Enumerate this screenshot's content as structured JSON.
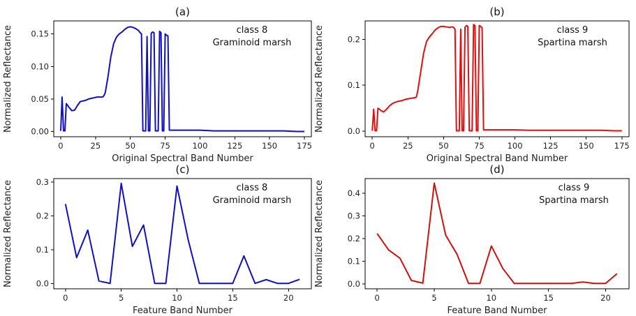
{
  "chart_data": [
    {
      "type": "line",
      "panel": "(a)",
      "xlabel": "Original Spectral Band Number",
      "ylabel": "Normalized Reflectance",
      "xlim": [
        -5,
        180
      ],
      "ylim": [
        -0.008,
        0.17
      ],
      "xticks": [
        0,
        25,
        50,
        75,
        100,
        125,
        150,
        175
      ],
      "yticks": [
        0.0,
        0.05,
        0.1,
        0.15
      ],
      "ytick_labels": [
        "0.00",
        "0.05",
        "0.10",
        "0.15"
      ],
      "annotation": [
        "class 8",
        "Graminoid marsh"
      ],
      "color": "#1111bb",
      "series": [
        {
          "x": [
            0,
            1,
            2,
            3,
            4,
            5,
            6,
            8,
            10,
            12,
            14,
            16,
            18,
            20,
            22,
            24,
            26,
            28,
            30,
            31,
            32,
            34,
            36,
            38,
            40,
            42,
            44,
            46,
            48,
            50,
            52,
            54,
            56,
            57,
            58,
            59,
            60,
            61,
            62,
            63,
            64,
            65,
            66,
            67,
            68,
            69,
            70,
            71,
            72,
            73,
            74,
            75,
            76,
            77,
            78,
            80,
            90,
            100,
            110,
            120,
            130,
            140,
            150,
            160,
            170,
            175
          ],
          "y": [
            0.001,
            0.053,
            0.001,
            0.001,
            0.043,
            0.04,
            0.037,
            0.032,
            0.033,
            0.04,
            0.046,
            0.047,
            0.048,
            0.05,
            0.051,
            0.052,
            0.053,
            0.053,
            0.053,
            0.055,
            0.06,
            0.085,
            0.115,
            0.135,
            0.145,
            0.15,
            0.153,
            0.157,
            0.16,
            0.161,
            0.16,
            0.158,
            0.155,
            0.152,
            0.15,
            0.001,
            0.001,
            0.001,
            0.146,
            0.001,
            0.001,
            0.151,
            0.153,
            0.152,
            0.001,
            0.001,
            0.001,
            0.154,
            0.152,
            0.001,
            0.001,
            0.15,
            0.148,
            0.147,
            0.002,
            0.002,
            0.002,
            0.002,
            0.001,
            0.001,
            0.001,
            0.001,
            0.001,
            0.001,
            0.0,
            0.0
          ]
        }
      ]
    },
    {
      "type": "line",
      "panel": "(b)",
      "xlabel": "Original Spectral Band Number",
      "ylabel": "Normalized Reflectance",
      "xlim": [
        -5,
        180
      ],
      "ylim": [
        -0.012,
        0.24
      ],
      "xticks": [
        0,
        25,
        50,
        75,
        100,
        125,
        150,
        175
      ],
      "yticks": [
        0.0,
        0.1,
        0.2
      ],
      "ytick_labels": [
        "0.0",
        "0.1",
        "0.2"
      ],
      "annotation": [
        "class 9",
        "Spartina marsh"
      ],
      "color": "#dd1111",
      "series": [
        {
          "x": [
            0,
            1,
            2,
            3,
            4,
            5,
            6,
            8,
            10,
            12,
            14,
            16,
            18,
            20,
            22,
            24,
            26,
            28,
            30,
            31,
            32,
            34,
            36,
            38,
            40,
            42,
            44,
            46,
            48,
            50,
            52,
            54,
            56,
            57,
            58,
            59,
            60,
            61,
            62,
            63,
            64,
            65,
            66,
            67,
            68,
            69,
            70,
            71,
            72,
            73,
            74,
            75,
            76,
            77,
            78,
            80,
            90,
            100,
            110,
            120,
            130,
            140,
            150,
            160,
            170,
            175
          ],
          "y": [
            0.001,
            0.048,
            0.001,
            0.001,
            0.05,
            0.048,
            0.045,
            0.042,
            0.048,
            0.055,
            0.06,
            0.063,
            0.065,
            0.066,
            0.068,
            0.07,
            0.071,
            0.072,
            0.073,
            0.075,
            0.09,
            0.13,
            0.17,
            0.195,
            0.205,
            0.212,
            0.22,
            0.225,
            0.228,
            0.228,
            0.227,
            0.226,
            0.227,
            0.226,
            0.222,
            0.001,
            0.001,
            0.001,
            0.222,
            0.001,
            0.001,
            0.226,
            0.23,
            0.228,
            0.001,
            0.001,
            0.001,
            0.232,
            0.23,
            0.001,
            0.001,
            0.23,
            0.228,
            0.225,
            0.003,
            0.003,
            0.003,
            0.003,
            0.002,
            0.002,
            0.002,
            0.002,
            0.002,
            0.002,
            0.001,
            0.001
          ]
        }
      ]
    },
    {
      "type": "line",
      "panel": "(c)",
      "xlabel": "Feature Band Number",
      "ylabel": "Normalized Reflectance",
      "xlim": [
        -1.05,
        22.05
      ],
      "ylim": [
        -0.015,
        0.31
      ],
      "xticks": [
        0,
        5,
        10,
        15,
        20
      ],
      "yticks": [
        0.0,
        0.1,
        0.2,
        0.3
      ],
      "ytick_labels": [
        "0.0",
        "0.1",
        "0.2",
        "0.3"
      ],
      "annotation": [
        "class 8",
        "Graminoid marsh"
      ],
      "color": "#1111bb",
      "series": [
        {
          "x": [
            0,
            1,
            2,
            3,
            4,
            5,
            6,
            7,
            8,
            9,
            10,
            11,
            12,
            13,
            14,
            15,
            16,
            17,
            18,
            19,
            20,
            21
          ],
          "y": [
            0.235,
            0.077,
            0.158,
            0.008,
            0.001,
            0.296,
            0.11,
            0.173,
            0.001,
            0.001,
            0.288,
            0.13,
            0.001,
            0.001,
            0.001,
            0.001,
            0.082,
            0.001,
            0.012,
            0.001,
            0.001,
            0.013
          ]
        }
      ]
    },
    {
      "type": "line",
      "panel": "(d)",
      "xlabel": "Feature Band Number",
      "ylabel": "Normalized Reflectance",
      "xlim": [
        -1.05,
        22.05
      ],
      "ylim": [
        -0.022,
        0.465
      ],
      "xticks": [
        0,
        5,
        10,
        15,
        20
      ],
      "yticks": [
        0.0,
        0.1,
        0.2,
        0.3,
        0.4
      ],
      "ytick_labels": [
        "0.0",
        "0.1",
        "0.2",
        "0.3",
        "0.4"
      ],
      "annotation": [
        "class 9",
        "Spartina marsh"
      ],
      "color": "#cc1111",
      "series": [
        {
          "x": [
            0,
            1,
            2,
            3,
            4,
            5,
            6,
            7,
            8,
            9,
            10,
            11,
            12,
            13,
            14,
            15,
            16,
            17,
            18,
            19,
            20,
            21
          ],
          "y": [
            0.222,
            0.15,
            0.113,
            0.015,
            0.003,
            0.445,
            0.215,
            0.13,
            0.002,
            0.002,
            0.167,
            0.068,
            0.002,
            0.002,
            0.002,
            0.002,
            0.002,
            0.002,
            0.008,
            0.002,
            0.002,
            0.045
          ]
        }
      ]
    }
  ]
}
